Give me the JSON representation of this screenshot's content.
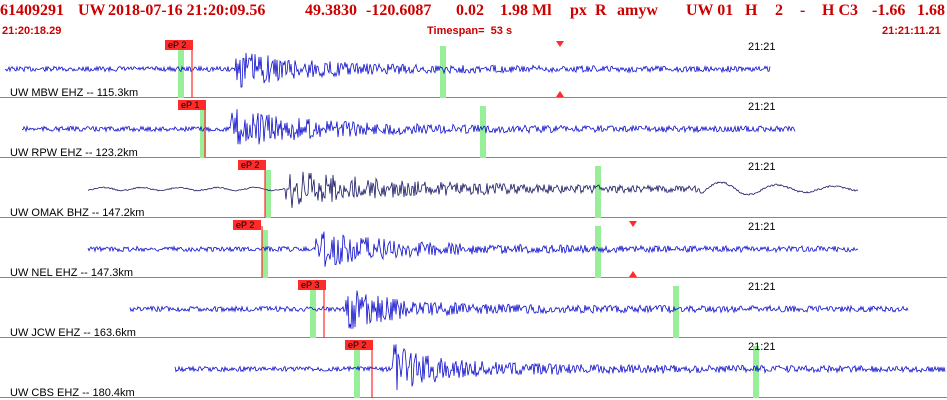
{
  "header": {
    "event_id": "61409291",
    "network": "UW",
    "datetime": "2018-07-16 21:20:09.56",
    "latitude": "49.3830",
    "longitude": "-120.6087",
    "depth": "0.02",
    "magnitude": "1.98 Ml",
    "type": "px",
    "review": "R",
    "analyst": "amyw",
    "loc_code": "UW 01",
    "quality": "H",
    "num": "2",
    "dash": "-",
    "class": "H C3",
    "val1": "-1.66",
    "val2": "1.68"
  },
  "subheader": {
    "start_time": "21:20:18.29",
    "timespan": "Timespan=  53 s",
    "end_time": "21:21:11.21"
  },
  "traces": [
    {
      "label": "UW MBW EHZ -- 115.3km",
      "time_label": "21:21",
      "pick_label": "eP 2",
      "color": "#1010cc",
      "amplitude": 0.55
    },
    {
      "label": "UW RPW EHZ -- 123.2km",
      "time_label": "21:21",
      "pick_label": "eP 1",
      "color": "#1010cc",
      "amplitude": 0.6
    },
    {
      "label": "UW OMAK BHZ -- 147.2km",
      "time_label": "21:21",
      "pick_label": "eP 2",
      "color": "#1a1a66",
      "amplitude": 0.6
    },
    {
      "label": "UW NEL EHZ -- 147.3km",
      "time_label": "21:21",
      "pick_label": "eP 2",
      "color": "#1010cc",
      "amplitude": 0.6
    },
    {
      "label": "UW JCW EHZ -- 163.6km",
      "time_label": "21:21",
      "pick_label": "eP 3",
      "color": "#1010cc",
      "amplitude": 0.7
    },
    {
      "label": "UW CBS EHZ -- 180.4km",
      "time_label": "21:21",
      "pick_label": "eP 2",
      "color": "#1010cc",
      "amplitude": 0.8
    }
  ],
  "colors": {
    "header_text": "#cc0000",
    "pick_box": "#ff2a2a",
    "green_marker": "#99ee99",
    "separator": "#888888"
  },
  "icons": [
    "pick-flag-icon",
    "triangle-marker-icon"
  ]
}
